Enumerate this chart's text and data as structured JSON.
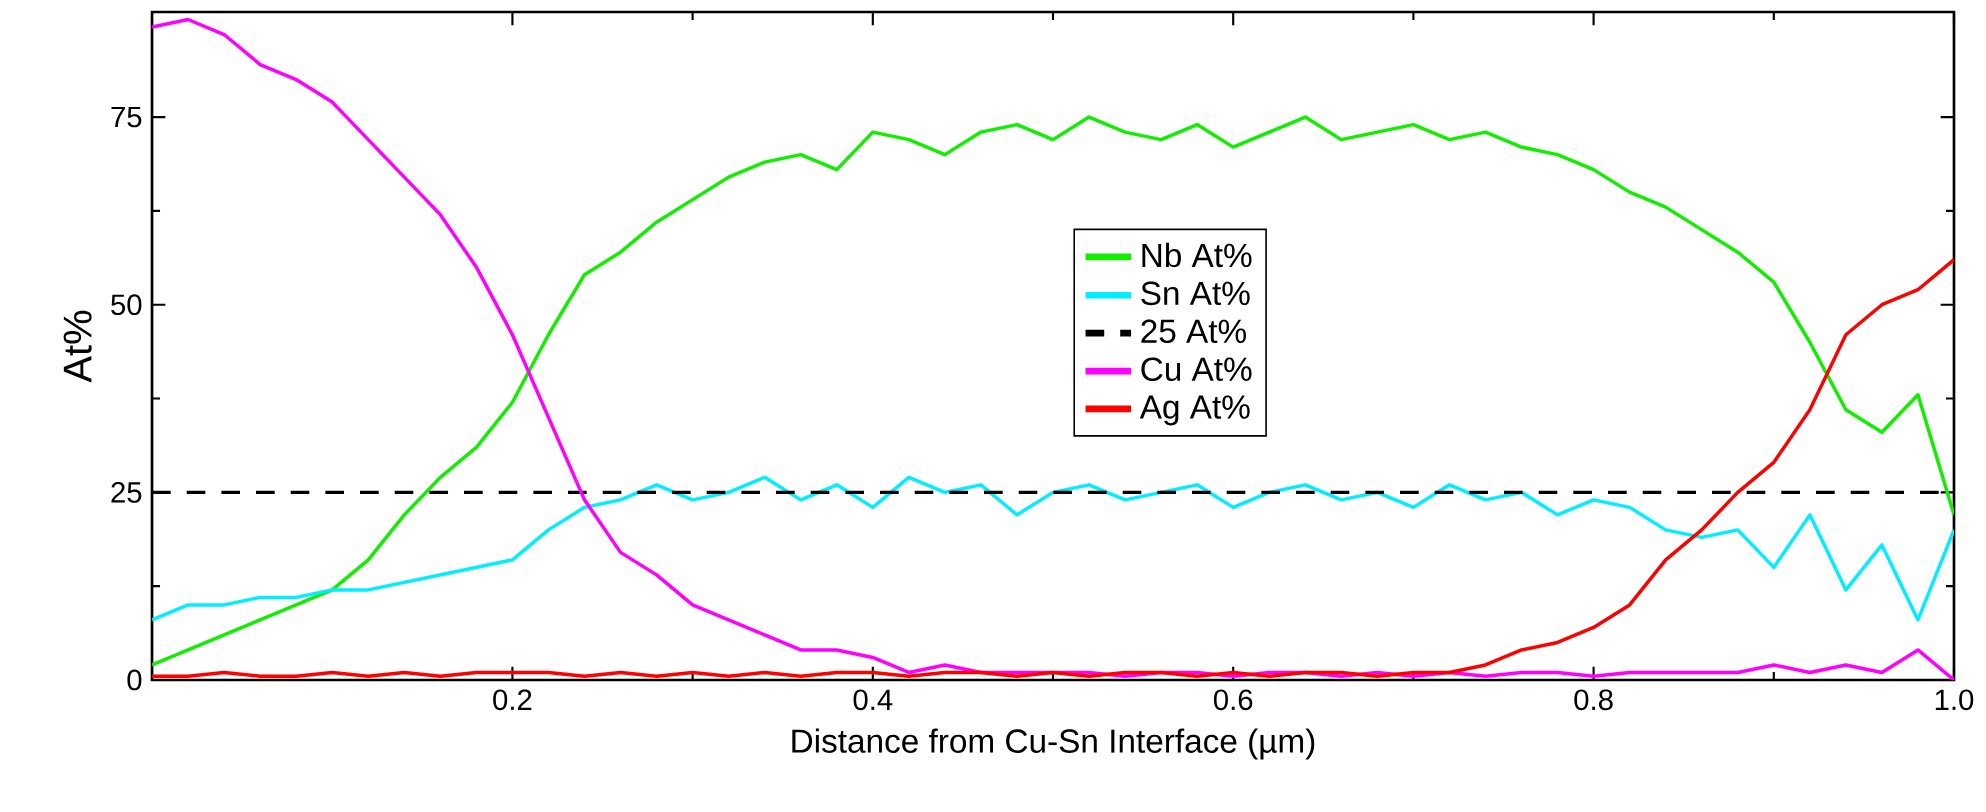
{
  "chart_data": {
    "type": "line",
    "xlabel": "Distance from Cu-Sn Interface (µm)",
    "ylabel": "At%",
    "x": [
      0,
      0.02,
      0.04,
      0.06,
      0.08,
      0.1,
      0.12,
      0.14,
      0.16,
      0.18,
      0.2,
      0.22,
      0.24,
      0.26,
      0.28,
      0.3,
      0.32,
      0.34,
      0.36,
      0.38,
      0.4,
      0.42,
      0.44,
      0.46,
      0.48,
      0.5,
      0.52,
      0.54,
      0.56,
      0.58,
      0.6,
      0.62,
      0.64,
      0.66,
      0.68,
      0.7,
      0.72,
      0.74,
      0.76,
      0.78,
      0.8,
      0.82,
      0.84,
      0.86,
      0.88,
      0.9,
      0.92,
      0.94,
      0.96,
      0.98,
      1.0
    ],
    "series": [
      {
        "name": "Nb At%",
        "color": "#11ee00",
        "values": [
          2,
          4,
          6,
          8,
          10,
          12,
          16,
          22,
          27,
          31,
          37,
          46,
          54,
          57,
          61,
          64,
          67,
          69,
          70,
          68,
          73,
          72,
          70,
          73,
          74,
          72,
          75,
          73,
          72,
          74,
          71,
          73,
          75,
          72,
          73,
          74,
          72,
          73,
          71,
          70,
          68,
          65,
          63,
          60,
          57,
          53,
          45,
          36,
          33,
          38,
          22
        ]
      },
      {
        "name": "Sn At%",
        "color": "#00eeff",
        "values": [
          8,
          10,
          10,
          11,
          11,
          12,
          12,
          13,
          14,
          15,
          16,
          20,
          23,
          24,
          26,
          24,
          25,
          27,
          24,
          26,
          23,
          27,
          25,
          26,
          22,
          25,
          26,
          24,
          25,
          26,
          23,
          25,
          26,
          24,
          25,
          23,
          26,
          24,
          25,
          22,
          24,
          23,
          20,
          19,
          20,
          15,
          22,
          12,
          18,
          8,
          20
        ]
      },
      {
        "name": "Cu At%",
        "color": "#ff00ff",
        "values": [
          87,
          88,
          86,
          82,
          80,
          77,
          72,
          67,
          62,
          55,
          46,
          35,
          24,
          17,
          14,
          10,
          8,
          6,
          4,
          4,
          3,
          1,
          2,
          1,
          1,
          1,
          1,
          0.5,
          1,
          1,
          0.5,
          1,
          1,
          0.5,
          1,
          0.5,
          1,
          0.5,
          1,
          1,
          0.5,
          1,
          1,
          1,
          1,
          2,
          1,
          2,
          1,
          4,
          0
        ]
      },
      {
        "name": "Ag At%",
        "color": "#ff0000",
        "values": [
          0.5,
          0.5,
          1,
          0.5,
          0.5,
          1,
          0.5,
          1,
          0.5,
          1,
          1,
          1,
          0.5,
          1,
          0.5,
          1,
          0.5,
          1,
          0.5,
          1,
          1,
          0.5,
          1,
          1,
          0.5,
          1,
          0.5,
          1,
          1,
          0.5,
          1,
          0.5,
          1,
          1,
          0.5,
          1,
          1,
          2,
          4,
          5,
          7,
          10,
          16,
          20,
          25,
          29,
          36,
          46,
          50,
          52,
          56
        ]
      }
    ],
    "ref_lines": [
      {
        "axis": "y",
        "value": 25,
        "label": "25 At%",
        "color": "#000000",
        "line_style": "dashed"
      }
    ],
    "xlim": [
      0,
      1.0
    ],
    "ylim": [
      0,
      89
    ],
    "xticks": [
      0.2,
      0.4,
      0.6,
      0.8,
      {
        "value": 1.0,
        "label": "1.0"
      }
    ],
    "yticks": [
      0,
      25,
      50,
      75
    ],
    "grid": false,
    "legend": "center",
    "marker": "none",
    "line_style": "solid"
  }
}
